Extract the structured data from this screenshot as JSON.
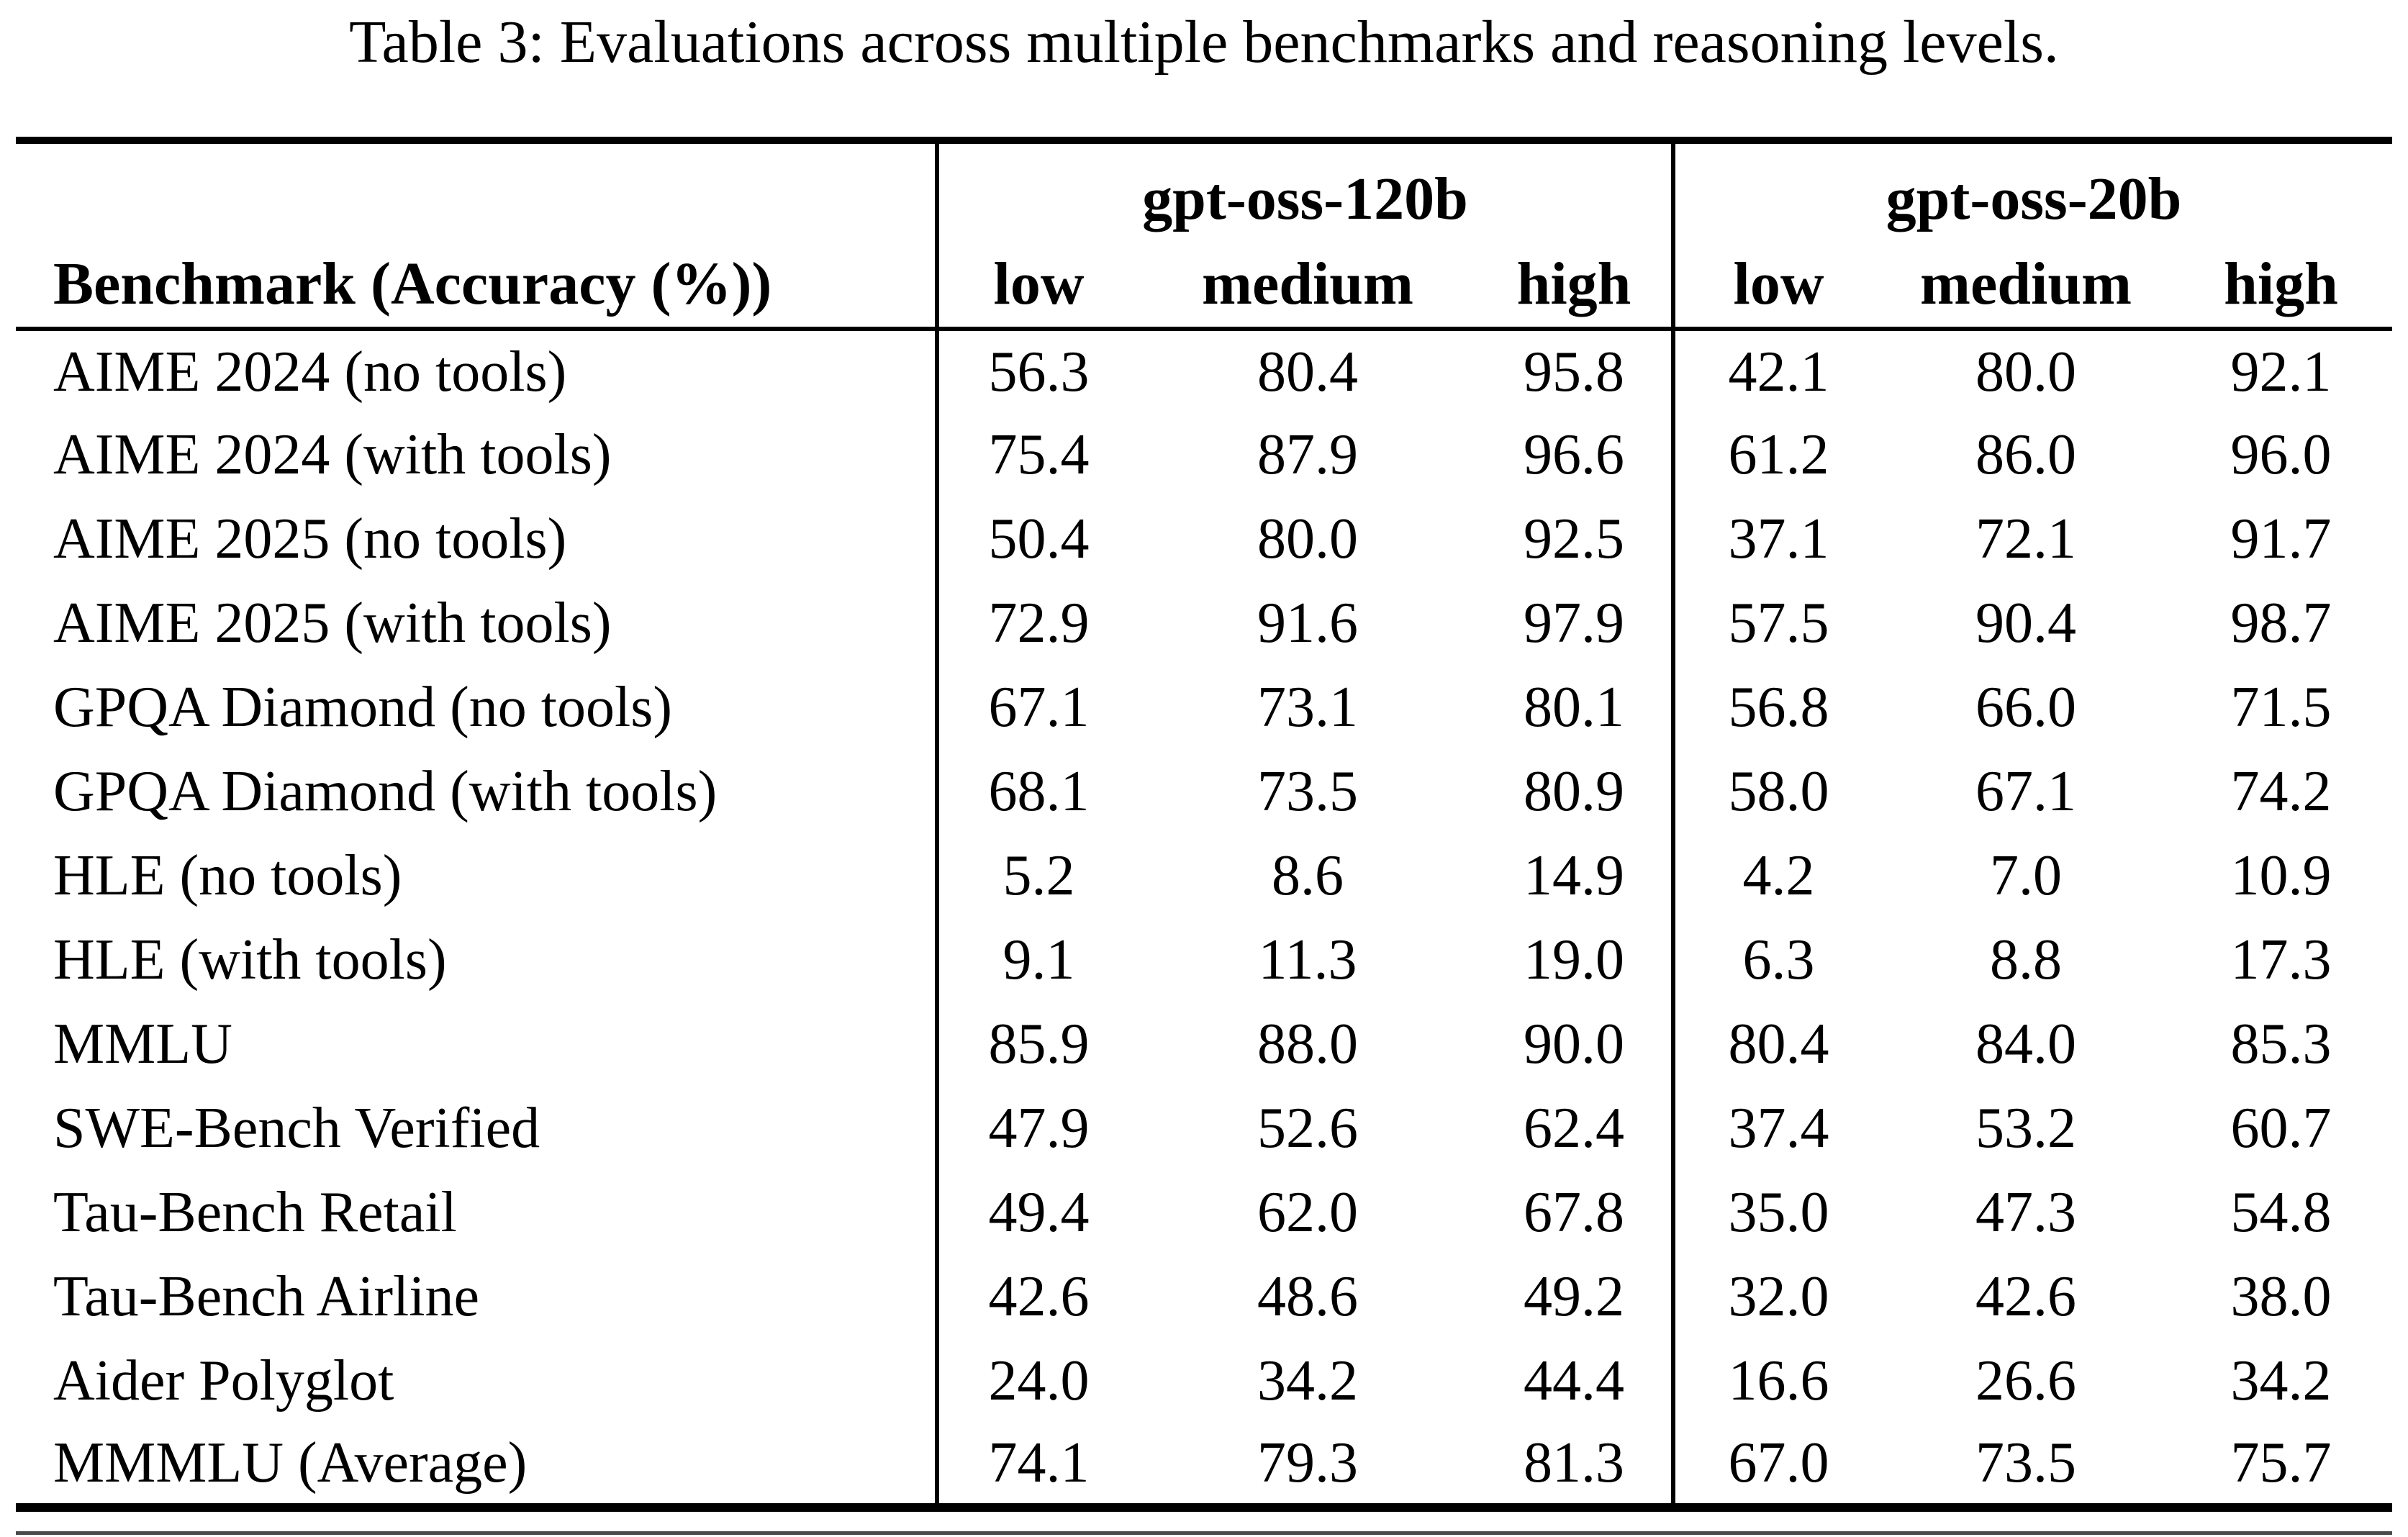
{
  "title": "Table 3: Evaluations across multiple benchmarks and reasoning levels.",
  "colors": {
    "background": "#ffffff",
    "text": "#000000",
    "rule": "#000000",
    "bottom_thin_rule": "#4a4a4a"
  },
  "chart_data": {
    "type": "table",
    "title": "Table 3: Evaluations across multiple benchmarks and reasoning levels.",
    "row_header": "Benchmark (Accuracy (%))",
    "column_groups": [
      {
        "label": "gpt-oss-120b",
        "columns": [
          "low",
          "medium",
          "high"
        ]
      },
      {
        "label": "gpt-oss-20b",
        "columns": [
          "low",
          "medium",
          "high"
        ]
      }
    ],
    "columns": [
      "gpt-oss-120b low",
      "gpt-oss-120b medium",
      "gpt-oss-120b high",
      "gpt-oss-20b low",
      "gpt-oss-20b medium",
      "gpt-oss-20b high"
    ],
    "rows": [
      {
        "name": "AIME 2024 (no tools)",
        "values": [
          "56.3",
          "80.4",
          "95.8",
          "42.1",
          "80.0",
          "92.1"
        ]
      },
      {
        "name": "AIME 2024 (with tools)",
        "values": [
          "75.4",
          "87.9",
          "96.6",
          "61.2",
          "86.0",
          "96.0"
        ]
      },
      {
        "name": "AIME 2025 (no tools)",
        "values": [
          "50.4",
          "80.0",
          "92.5",
          "37.1",
          "72.1",
          "91.7"
        ]
      },
      {
        "name": "AIME 2025 (with tools)",
        "values": [
          "72.9",
          "91.6",
          "97.9",
          "57.5",
          "90.4",
          "98.7"
        ]
      },
      {
        "name": "GPQA Diamond (no tools)",
        "values": [
          "67.1",
          "73.1",
          "80.1",
          "56.8",
          "66.0",
          "71.5"
        ]
      },
      {
        "name": "GPQA Diamond (with tools)",
        "values": [
          "68.1",
          "73.5",
          "80.9",
          "58.0",
          "67.1",
          "74.2"
        ]
      },
      {
        "name": "HLE (no tools)",
        "values": [
          "5.2",
          "8.6",
          "14.9",
          "4.2",
          "7.0",
          "10.9"
        ]
      },
      {
        "name": "HLE (with tools)",
        "values": [
          "9.1",
          "11.3",
          "19.0",
          "6.3",
          "8.8",
          "17.3"
        ]
      },
      {
        "name": "MMLU",
        "values": [
          "85.9",
          "88.0",
          "90.0",
          "80.4",
          "84.0",
          "85.3"
        ]
      },
      {
        "name": "SWE-Bench Verified",
        "values": [
          "47.9",
          "52.6",
          "62.4",
          "37.4",
          "53.2",
          "60.7"
        ]
      },
      {
        "name": "Tau-Bench Retail",
        "values": [
          "49.4",
          "62.0",
          "67.8",
          "35.0",
          "47.3",
          "54.8"
        ]
      },
      {
        "name": "Tau-Bench Airline",
        "values": [
          "42.6",
          "48.6",
          "49.2",
          "32.0",
          "42.6",
          "38.0"
        ]
      },
      {
        "name": "Aider Polyglot",
        "values": [
          "24.0",
          "34.2",
          "44.4",
          "16.6",
          "26.6",
          "34.2"
        ]
      },
      {
        "name": "MMMLU (Average)",
        "values": [
          "74.1",
          "79.3",
          "81.3",
          "67.0",
          "73.5",
          "75.7"
        ]
      }
    ]
  }
}
